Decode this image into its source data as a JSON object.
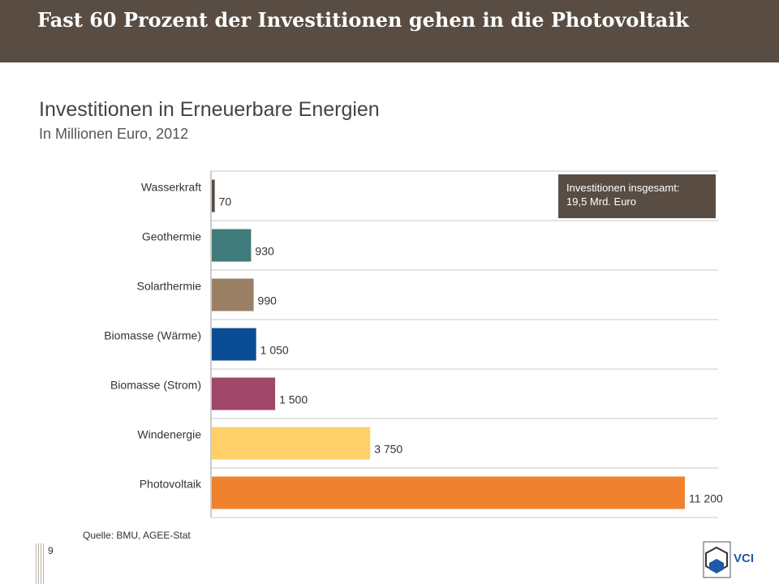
{
  "header": {
    "title": "Fast 60 Prozent der Investitionen gehen in die Photovoltaik"
  },
  "chart_data": {
    "type": "bar",
    "orientation": "horizontal",
    "title": "Investitionen in Erneuerbare Energien",
    "subtitle": "In Millionen Euro, 2012",
    "categories": [
      "Wasserkraft",
      "Geothermie",
      "Solarthermie",
      "Biomasse (Wärme)",
      "Biomasse (Strom)",
      "Windenergie",
      "Photovoltaik"
    ],
    "values": [
      70,
      930,
      990,
      1050,
      1500,
      3750,
      11200
    ],
    "value_labels": [
      "70",
      "930",
      "990",
      "1 050",
      "1 500",
      "3 750",
      "11 200"
    ],
    "colors": [
      "#594d43",
      "#3e7b7a",
      "#9b7f65",
      "#0b4d94",
      "#a04668",
      "#fdd069",
      "#f0822f"
    ],
    "xlim": [
      0,
      11200
    ],
    "grid": "horizontal separators",
    "annotation": {
      "line1": "Investitionen insgesamt:",
      "line2": "19,5 Mrd. Euro"
    }
  },
  "footer": {
    "source": "Quelle:  BMU, AGEE-Stat",
    "page_number": "9",
    "logo_text": "VCI"
  }
}
